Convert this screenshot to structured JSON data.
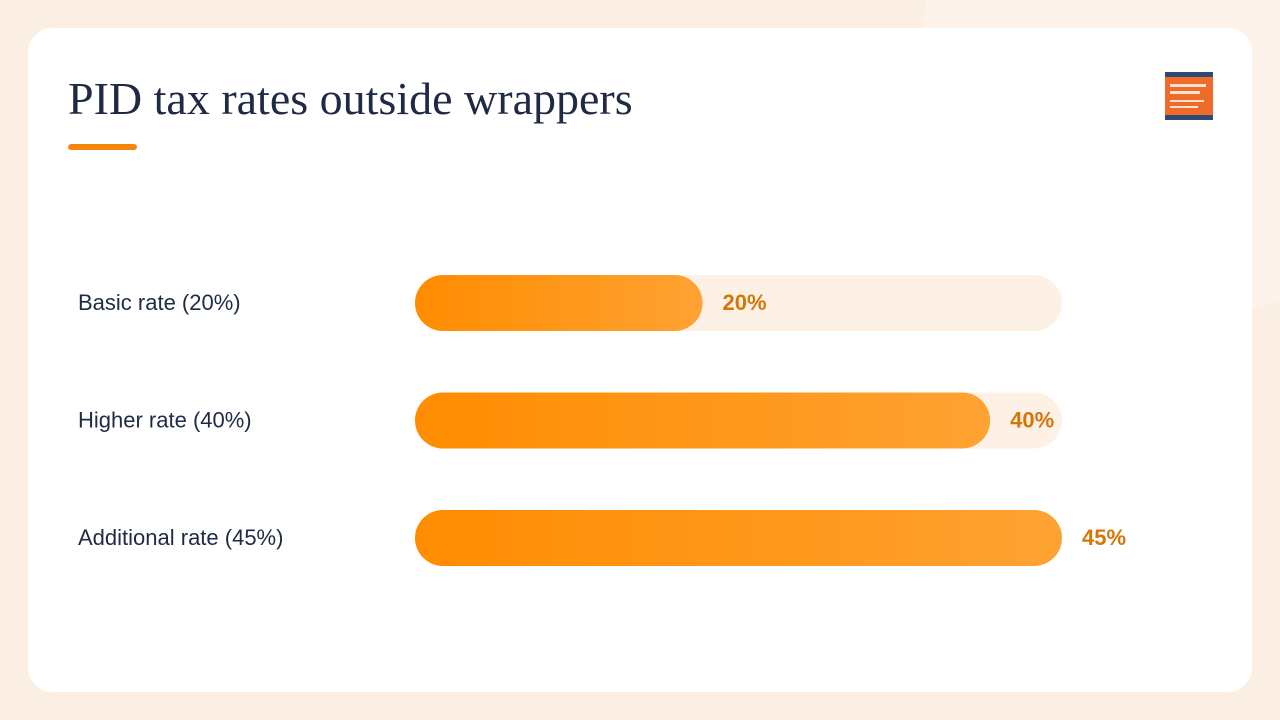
{
  "chart_data": {
    "type": "bar",
    "orientation": "horizontal",
    "title": "PID tax rates outside wrappers",
    "categories": [
      "Basic rate (20%)",
      "Higher rate (40%)",
      "Additional rate (45%)"
    ],
    "values": [
      20,
      40,
      45
    ],
    "value_labels": [
      "20%",
      "40%",
      "45%"
    ],
    "color": "#ff8c00",
    "xlim": [
      0,
      45
    ]
  }
}
